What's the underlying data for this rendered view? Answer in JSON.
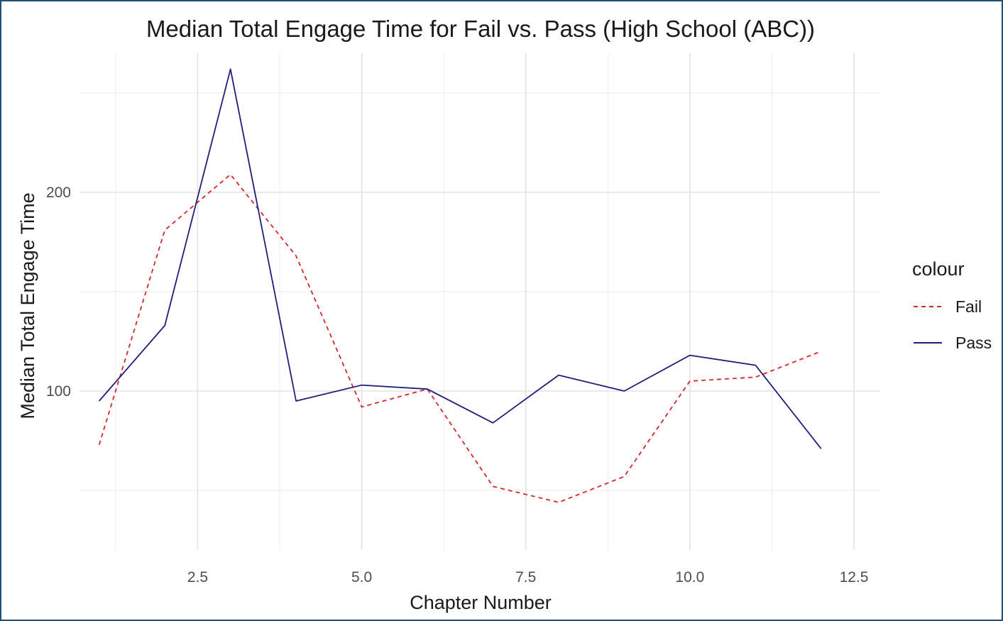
{
  "chart_data": {
    "type": "line",
    "title": "Median Total Engage Time for Fail vs. Pass (High School (ABC))",
    "xlabel": "Chapter Number",
    "ylabel": "Median Total Engage Time",
    "xlim": [
      0.7,
      12.9
    ],
    "ylim": [
      20,
      270
    ],
    "x_ticks": [
      2.5,
      5.0,
      7.5,
      10.0,
      12.5
    ],
    "x_tick_labels": [
      "2.5",
      "5.0",
      "7.5",
      "10.0",
      "12.5"
    ],
    "x_minor_ticks": [
      1.25,
      3.75,
      6.25,
      8.75,
      11.25
    ],
    "y_ticks": [
      100,
      200
    ],
    "y_tick_labels": [
      "100",
      "200"
    ],
    "y_minor_ticks": [
      50,
      150,
      250
    ],
    "grid": true,
    "legend": {
      "title": "colour",
      "position": "right"
    },
    "x": [
      1,
      2,
      3,
      4,
      5,
      6,
      7,
      8,
      9,
      10,
      11,
      12
    ],
    "series": [
      {
        "name": "Fail",
        "color": "#d62728",
        "dash": "dashed",
        "values": [
          73,
          181,
          209,
          168,
          92,
          101,
          52,
          44,
          57,
          105,
          107,
          120
        ]
      },
      {
        "name": "Pass",
        "color": "#1f1f7a",
        "dash": "solid",
        "values": [
          95,
          133,
          262,
          95,
          103,
          101,
          84,
          108,
          100,
          118,
          113,
          71
        ]
      }
    ]
  }
}
